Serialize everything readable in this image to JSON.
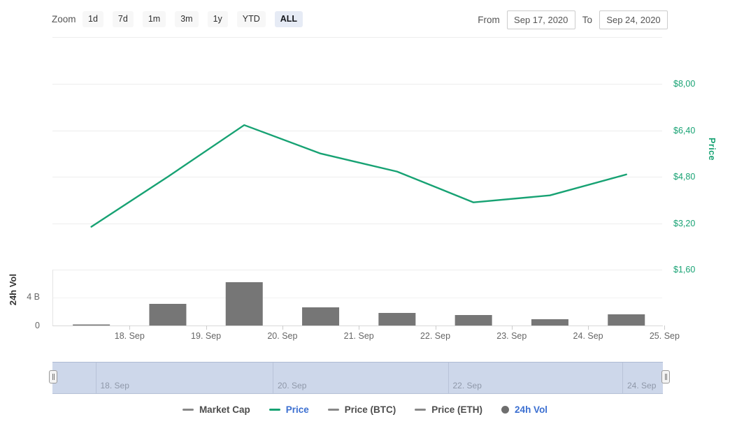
{
  "toolbar": {
    "zoom_label": "Zoom",
    "zoom_buttons": [
      "1d",
      "7d",
      "1m",
      "3m",
      "1y",
      "YTD",
      "ALL"
    ],
    "active_zoom": "ALL",
    "from_label": "From",
    "from_value": "Sep 17, 2020",
    "to_label": "To",
    "to_value": "Sep 24, 2020"
  },
  "price_axis": {
    "title": "Price",
    "labels": [
      "$8,00",
      "$6,40",
      "$4,80",
      "$3,20",
      "$1,60"
    ],
    "color": "#17a273"
  },
  "volume_axis": {
    "title": "24h Vol",
    "labels": [
      "4 B",
      "0"
    ]
  },
  "x_axis": {
    "labels": [
      "18. Sep",
      "19. Sep",
      "20. Sep",
      "21. Sep",
      "22. Sep",
      "23. Sep",
      "24. Sep",
      "25. Sep"
    ]
  },
  "navigator": {
    "labels": [
      "18. Sep",
      "20. Sep",
      "22. Sep",
      "24. Sep"
    ]
  },
  "legend": {
    "items": [
      {
        "label": "Market Cap",
        "marker": "line",
        "marker_color": "#888888",
        "text_color": "#4d4d4d",
        "active": false
      },
      {
        "label": "Price",
        "marker": "line",
        "marker_color": "#17a273",
        "text_color": "#3b6fd1",
        "active": true
      },
      {
        "label": "Price (BTC)",
        "marker": "line",
        "marker_color": "#888888",
        "text_color": "#4d4d4d",
        "active": false
      },
      {
        "label": "Price (ETH)",
        "marker": "line",
        "marker_color": "#888888",
        "text_color": "#4d4d4d",
        "active": false
      },
      {
        "label": "24h Vol",
        "marker": "circle",
        "marker_color": "#6e6e6e",
        "text_color": "#3b6fd1",
        "active": true
      }
    ]
  },
  "chart_data": [
    {
      "type": "line",
      "name": "Price",
      "x": [
        "Sep 17",
        "Sep 18",
        "Sep 19",
        "Sep 20",
        "Sep 21",
        "Sep 22",
        "Sep 23",
        "Sep 24"
      ],
      "values": [
        3.08,
        4.8,
        6.58,
        5.6,
        4.98,
        3.92,
        4.16,
        4.88
      ],
      "title": "",
      "xlabel": "",
      "ylabel": "Price",
      "ylim": [
        1.6,
        9.6
      ],
      "yticks": [
        "$1,60",
        "$3,20",
        "$4,80",
        "$6,40",
        "$8,00"
      ],
      "color": "#17a273",
      "grid": true,
      "legend_position": "bottom"
    },
    {
      "type": "bar",
      "name": "24h Vol",
      "x": [
        "Sep 17",
        "Sep 18",
        "Sep 19",
        "Sep 20",
        "Sep 21",
        "Sep 22",
        "Sep 23",
        "Sep 24"
      ],
      "values": [
        0.15,
        3.1,
        6.2,
        2.6,
        1.8,
        1.5,
        0.9,
        1.6
      ],
      "ylabel": "24h Vol",
      "ylim": [
        0,
        8
      ],
      "yticks": [
        "0",
        "4 B"
      ],
      "color": "#767676",
      "grid": true
    }
  ]
}
